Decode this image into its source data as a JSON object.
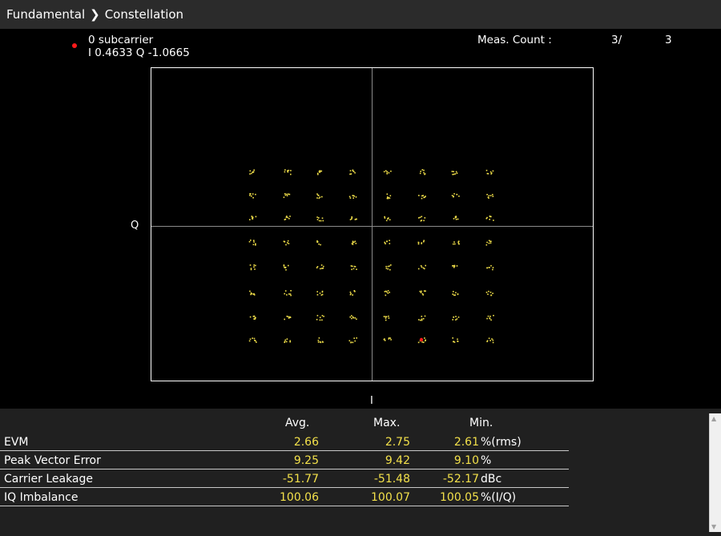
{
  "breadcrumb": {
    "root": "Fundamental",
    "current": "Constellation"
  },
  "marker": {
    "line1": "0 subcarrier",
    "line2": "I 0.4633 Q -1.0665",
    "color": "#ff1a1a"
  },
  "meas": {
    "label": "Meas. Count :",
    "current": "3/",
    "total": "3"
  },
  "axes": {
    "q": "Q",
    "i": "I"
  },
  "symbol_color": "#f2e04a",
  "results": {
    "headers": {
      "avg": "Avg.",
      "max": "Max.",
      "min": "Min."
    },
    "rows": [
      {
        "name": "EVM",
        "avg": "2.66",
        "max": "2.75",
        "min": "2.61",
        "unit": "%(rms)"
      },
      {
        "name": "Peak Vector Error",
        "avg": "9.25",
        "max": "9.42",
        "min": "9.10",
        "unit": "%"
      },
      {
        "name": "Carrier Leakage",
        "avg": "-51.77",
        "max": "-51.48",
        "min": "-52.17",
        "unit": "dBc"
      },
      {
        "name": "IQ Imbalance",
        "avg": "100.06",
        "max": "100.07",
        "min": "100.05",
        "unit": "%(I/Q)"
      }
    ]
  }
}
